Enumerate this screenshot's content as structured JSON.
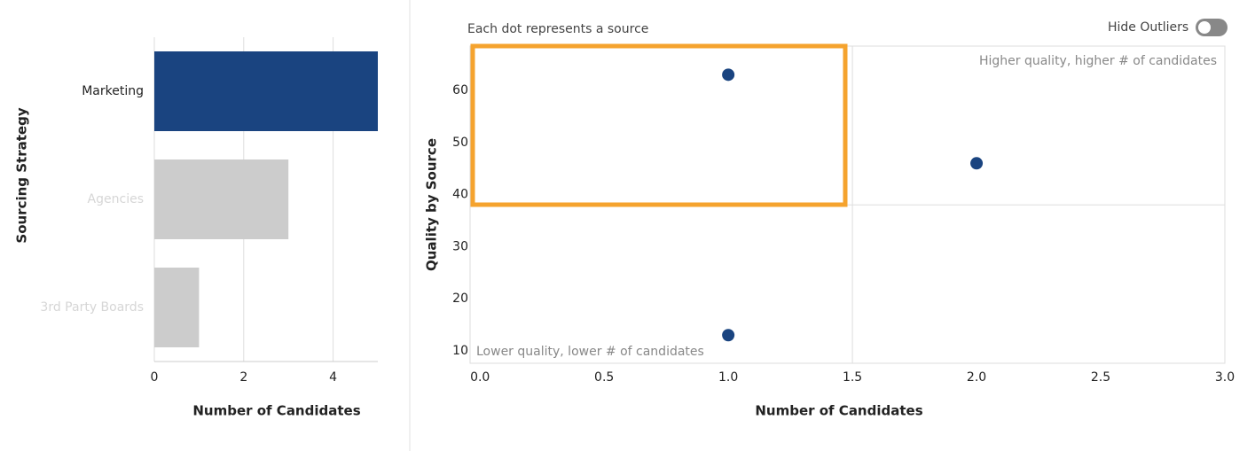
{
  "controls": {
    "hide_outliers": "Hide Outliers"
  },
  "chart_data": [
    {
      "type": "hbar",
      "y_label": "Sourcing Strategy",
      "x_label": "Number of Candidates",
      "categories": [
        "Marketing",
        "Agencies",
        "3rd Party Boards"
      ],
      "values": [
        5,
        3,
        1
      ],
      "colors": [
        "#1a4480",
        "#cccccc",
        "#cccccc"
      ],
      "xlim": [
        0,
        5
      ],
      "xticks": [
        0,
        2,
        4
      ],
      "grid": true
    },
    {
      "type": "scatter",
      "subtitle": "Each dot represents a source",
      "x_label": "Number of Candidates",
      "y_label": "Quality by Source",
      "annotations": [
        "Higher quality, higher # of candidates",
        "Lower quality, lower # of candidates"
      ],
      "x": [
        1,
        2,
        1
      ],
      "values": [
        63,
        46,
        13
      ],
      "color": "#1a4480",
      "quadrant_lines": {
        "x": 1.5,
        "y": 38
      },
      "xlim": [
        -0.04,
        3.0
      ],
      "ylim": [
        7.6,
        68.5
      ],
      "xticks": [
        {
          "value": 0,
          "label": "0.0"
        },
        0.5,
        {
          "value": 1,
          "label": "1.0"
        },
        1.5,
        {
          "value": 2,
          "label": "2.0"
        },
        2.5,
        {
          "value": 3,
          "label": "3.0"
        }
      ],
      "yticks": [
        10,
        20,
        30,
        40,
        50,
        60
      ]
    }
  ]
}
